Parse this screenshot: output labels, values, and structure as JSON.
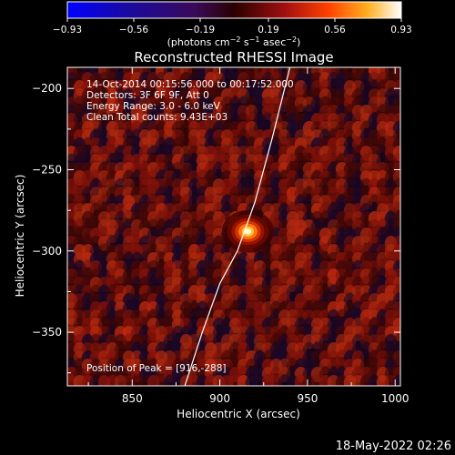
{
  "colorbar": {
    "ticks": [
      "-0.93",
      "-0.56",
      "-0.19",
      "0.19",
      "0.56",
      "0.93"
    ],
    "unit_text": "(photons cm-2 s-1 asec-2)"
  },
  "chart_data": {
    "type": "heatmap",
    "title": "Reconstructed RHESSI Image",
    "xlabel": "Heliocentric X (arcsec)",
    "ylabel": "Heliocentric Y (arcsec)",
    "xlim": [
      813,
      1003
    ],
    "ylim": [
      -383,
      -187
    ],
    "x_ticks": [
      850,
      900,
      950,
      1000
    ],
    "y_ticks": [
      -200,
      -250,
      -300,
      -350
    ],
    "x_tick_labels": [
      "850",
      "900",
      "950",
      "1000"
    ],
    "y_tick_labels": [
      "−200",
      "−250",
      "−300",
      "−350"
    ],
    "color_range": [
      -0.93,
      0.93
    ],
    "colormap": "red-temperature",
    "peak": {
      "x": 916,
      "y": -288,
      "value": 0.93
    },
    "limb_curve": [
      [
        880,
        -383
      ],
      [
        890,
        -350
      ],
      [
        900,
        -320
      ],
      [
        910,
        -300
      ],
      [
        920,
        -270
      ],
      [
        930,
        -230
      ],
      [
        940,
        -187
      ]
    ],
    "annotations": [
      "14-Oct-2014 00:15:56.000 to 00:17:52.000",
      "Detectors: 3F 6F 9F, Att 0",
      "Energy Range: 3.0 - 6.0 keV",
      "Clean    Total counts: 9.43E+03"
    ],
    "peak_label": "Position of Peak = [916,-288]"
  },
  "footer": {
    "date": "18-May-2022 02:26"
  }
}
